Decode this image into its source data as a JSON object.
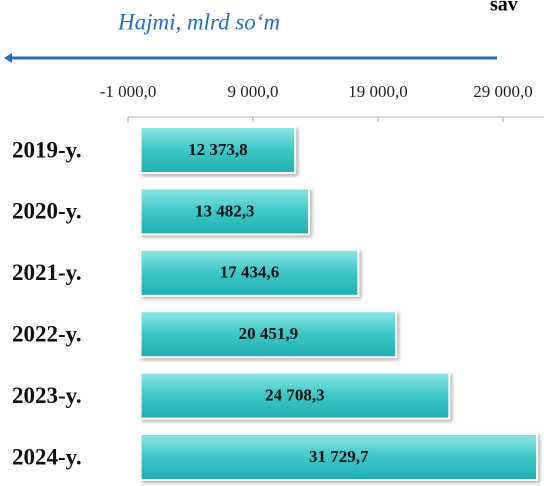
{
  "chart_data": {
    "type": "hbar",
    "title": "sav",
    "x_label": "Hajmi, mlrd so‘m",
    "categories": [
      "2019-y.",
      "2020-y.",
      "2021-y.",
      "2022-y.",
      "2023-y.",
      "2024-y."
    ],
    "values": [
      12373.8,
      13482.3,
      17434.6,
      20451.9,
      24708.3,
      31729.7
    ],
    "value_labels": [
      "12 373,8",
      "13 482,3",
      "17 434,6",
      "20 451,9",
      "24 708,3",
      "31 729,7"
    ],
    "color": "#3cc6c6",
    "xlim": [
      -1000,
      32280
    ],
    "xticks": [
      {
        "value": -1000,
        "label": "-1 000,0"
      },
      {
        "value": 9000,
        "label": "9 000,0"
      },
      {
        "value": 19000,
        "label": "19 000,0"
      },
      {
        "value": 29000,
        "label": "29 000,0"
      }
    ]
  }
}
